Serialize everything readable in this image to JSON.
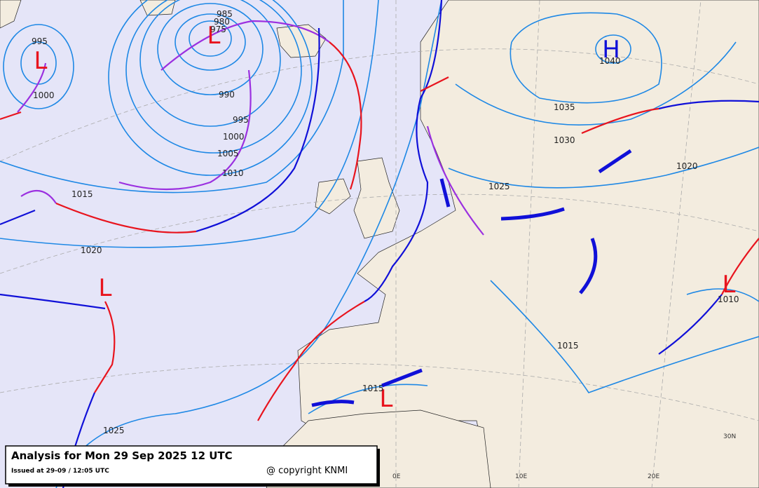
{
  "header": {
    "title": "Analysis for Mon 29 Sep 2025 12 UTC",
    "issued": "Issued at 29-09 / 12:05 UTC",
    "copyright": "@ copyright KNMI"
  },
  "pressure_centers": [
    {
      "label": "L"
    },
    {
      "label": "L"
    },
    {
      "label": "H"
    },
    {
      "label": "L"
    },
    {
      "label": "L"
    },
    {
      "label": "L"
    }
  ],
  "isobar_labels": [
    995,
    1000,
    985,
    980,
    975,
    990,
    995,
    1000,
    1005,
    1010,
    1015,
    1020,
    1025,
    1035,
    1030,
    1040,
    1020,
    1025,
    1015,
    1010,
    1015
  ],
  "grid_labels": [
    "0E",
    "10E",
    "20E",
    "30N"
  ]
}
